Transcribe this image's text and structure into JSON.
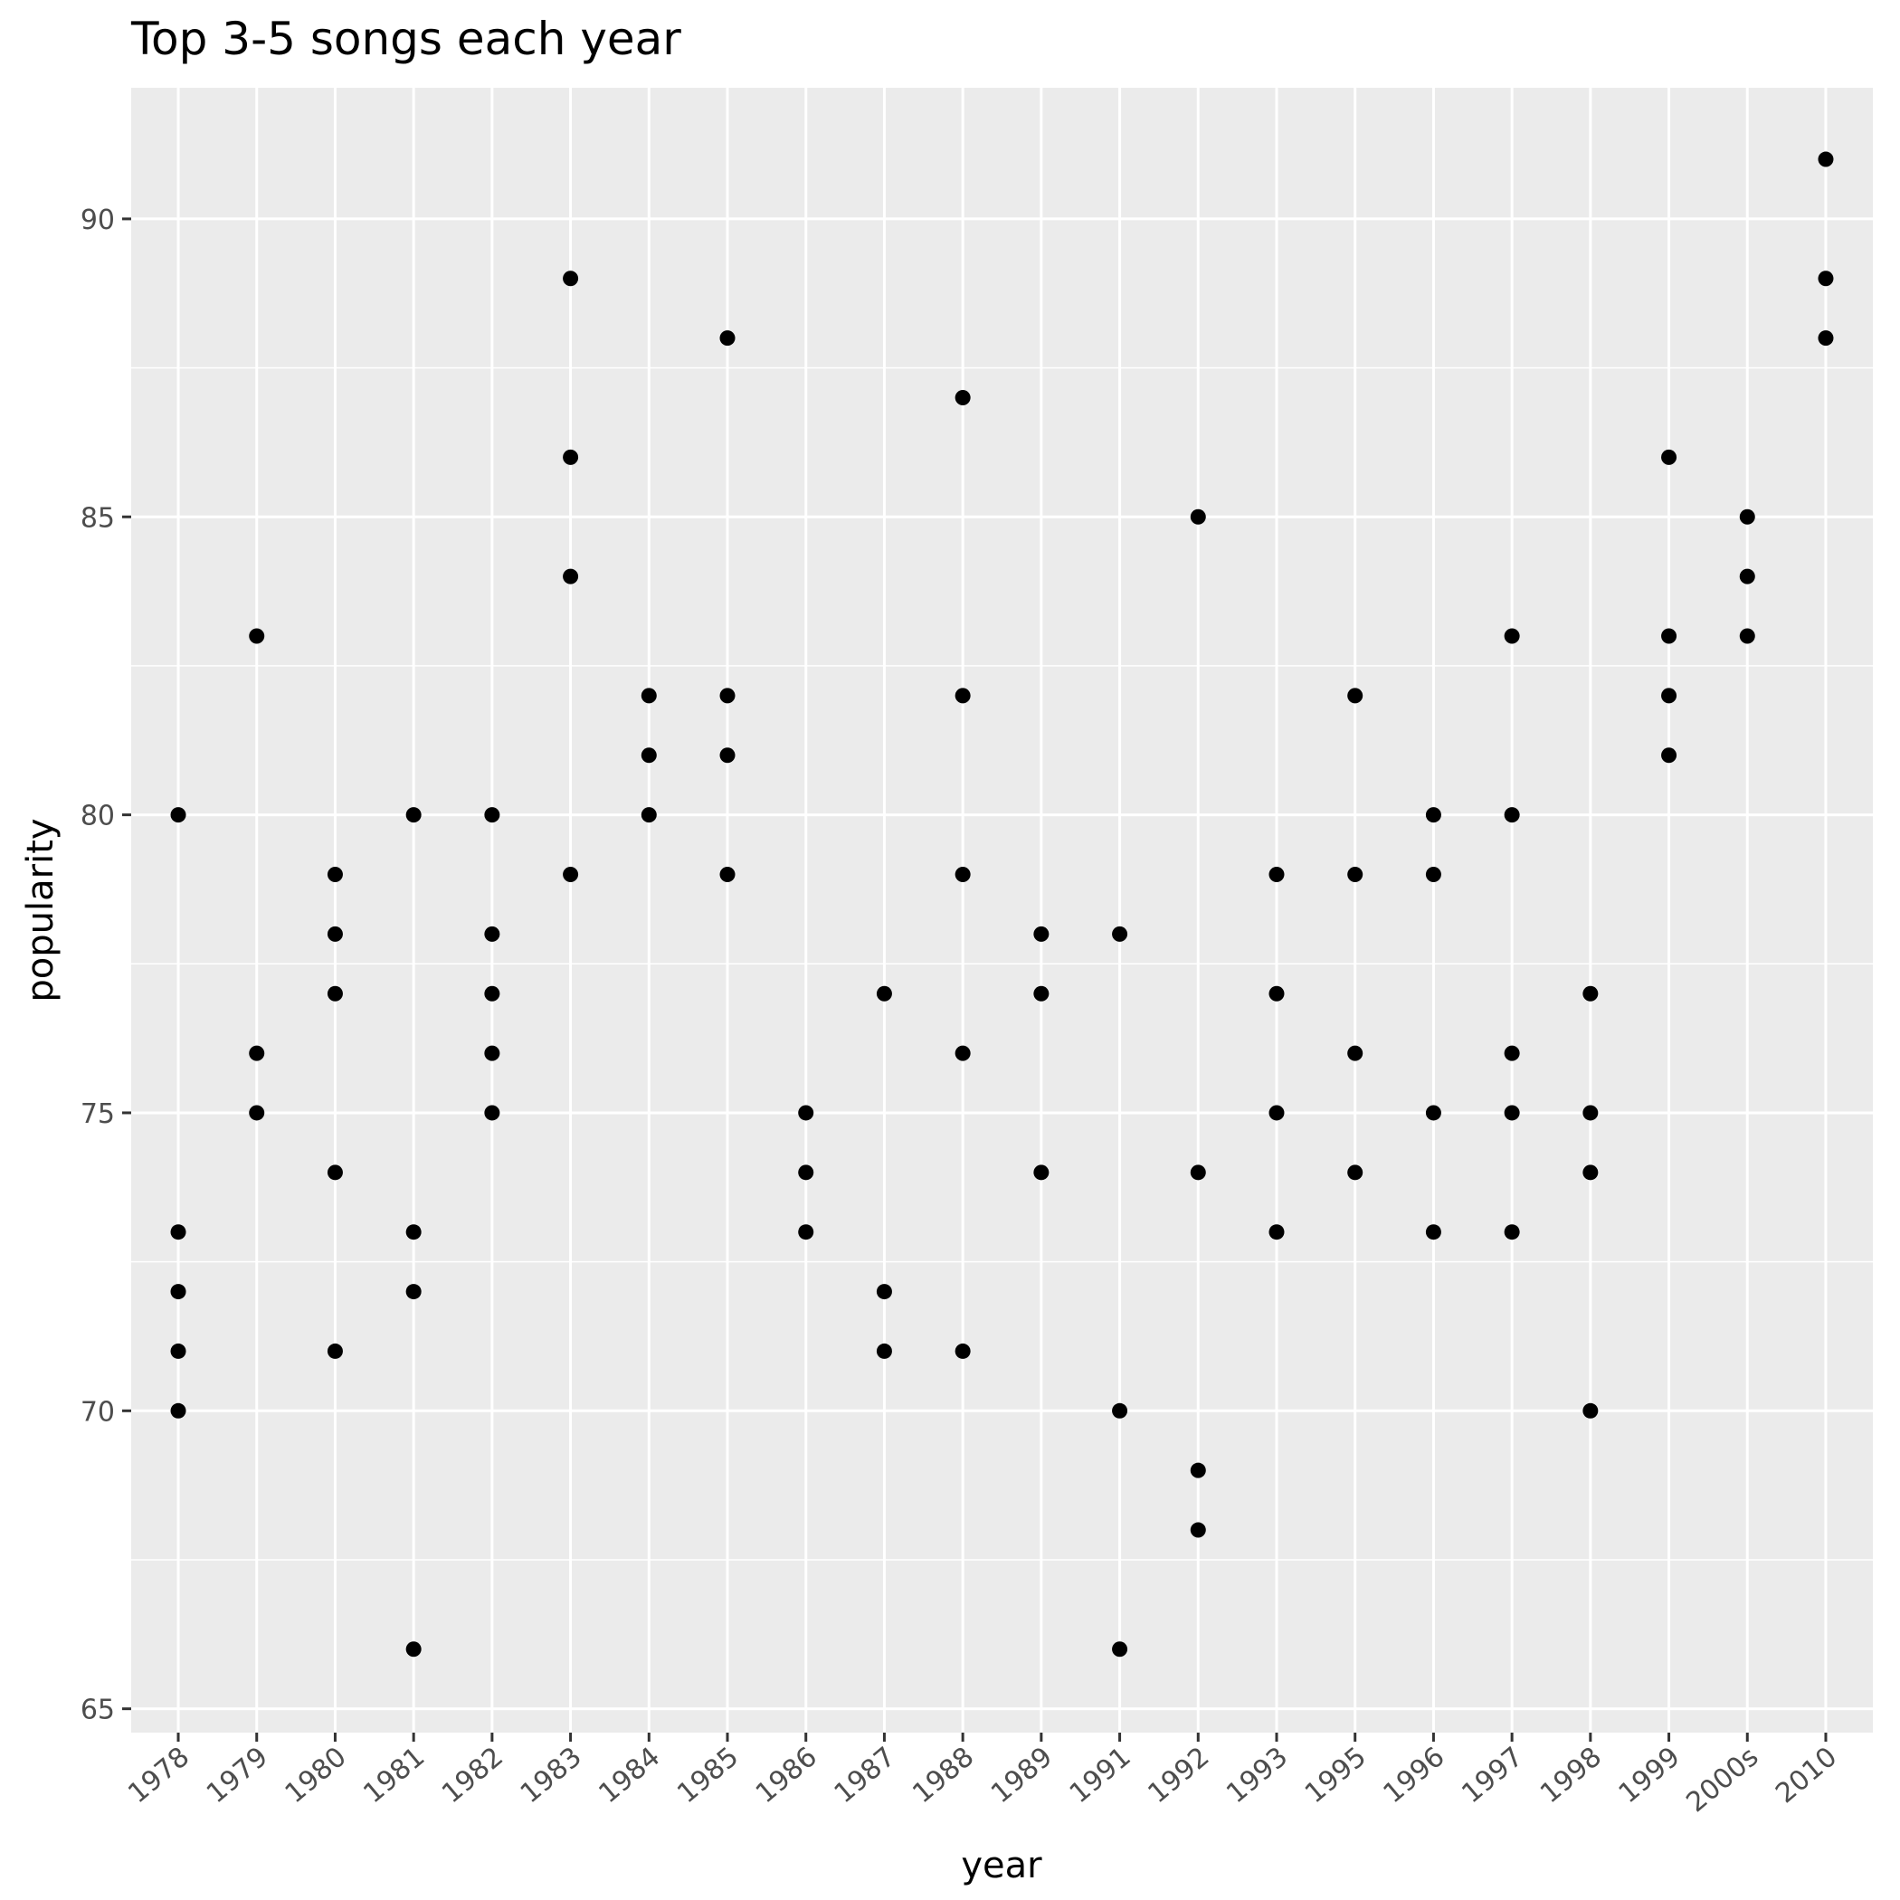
{
  "chart_data": {
    "type": "scatter",
    "title": "Top 3-5 songs each year",
    "xlabel": "year",
    "ylabel": "popularity",
    "categories": [
      "1978",
      "1979",
      "1980",
      "1981",
      "1982",
      "1983",
      "1984",
      "1985",
      "1986",
      "1987",
      "1988",
      "1989",
      "1991",
      "1992",
      "1993",
      "1995",
      "1996",
      "1997",
      "1998",
      "1999",
      "2000s",
      "2010"
    ],
    "ylim": [
      64.6,
      92.2
    ],
    "yticks": [
      65,
      70,
      75,
      80,
      85,
      90
    ],
    "grid": true,
    "legend": "none",
    "colors": {
      "panel": "#ebebeb",
      "grid": "#ffffff",
      "point": "#000000",
      "tick": "#333333",
      "tick_label": "#4d4d4d"
    },
    "points": [
      {
        "x": "1978",
        "y": 80
      },
      {
        "x": "1978",
        "y": 73
      },
      {
        "x": "1978",
        "y": 72
      },
      {
        "x": "1978",
        "y": 71
      },
      {
        "x": "1978",
        "y": 70
      },
      {
        "x": "1979",
        "y": 83
      },
      {
        "x": "1979",
        "y": 76
      },
      {
        "x": "1979",
        "y": 75
      },
      {
        "x": "1980",
        "y": 79
      },
      {
        "x": "1980",
        "y": 78
      },
      {
        "x": "1980",
        "y": 77
      },
      {
        "x": "1980",
        "y": 74
      },
      {
        "x": "1980",
        "y": 71
      },
      {
        "x": "1981",
        "y": 80
      },
      {
        "x": "1981",
        "y": 73
      },
      {
        "x": "1981",
        "y": 72
      },
      {
        "x": "1981",
        "y": 66
      },
      {
        "x": "1982",
        "y": 80
      },
      {
        "x": "1982",
        "y": 78
      },
      {
        "x": "1982",
        "y": 77
      },
      {
        "x": "1982",
        "y": 76
      },
      {
        "x": "1982",
        "y": 75
      },
      {
        "x": "1983",
        "y": 89
      },
      {
        "x": "1983",
        "y": 86
      },
      {
        "x": "1983",
        "y": 84
      },
      {
        "x": "1983",
        "y": 79
      },
      {
        "x": "1984",
        "y": 82
      },
      {
        "x": "1984",
        "y": 81
      },
      {
        "x": "1984",
        "y": 80
      },
      {
        "x": "1985",
        "y": 88
      },
      {
        "x": "1985",
        "y": 82
      },
      {
        "x": "1985",
        "y": 81
      },
      {
        "x": "1985",
        "y": 79
      },
      {
        "x": "1986",
        "y": 75
      },
      {
        "x": "1986",
        "y": 74
      },
      {
        "x": "1986",
        "y": 73
      },
      {
        "x": "1987",
        "y": 77
      },
      {
        "x": "1987",
        "y": 72
      },
      {
        "x": "1987",
        "y": 71
      },
      {
        "x": "1988",
        "y": 87
      },
      {
        "x": "1988",
        "y": 82
      },
      {
        "x": "1988",
        "y": 79
      },
      {
        "x": "1988",
        "y": 76
      },
      {
        "x": "1988",
        "y": 71
      },
      {
        "x": "1989",
        "y": 78
      },
      {
        "x": "1989",
        "y": 77
      },
      {
        "x": "1989",
        "y": 74
      },
      {
        "x": "1991",
        "y": 78
      },
      {
        "x": "1991",
        "y": 70
      },
      {
        "x": "1991",
        "y": 66
      },
      {
        "x": "1992",
        "y": 85
      },
      {
        "x": "1992",
        "y": 74
      },
      {
        "x": "1992",
        "y": 69
      },
      {
        "x": "1992",
        "y": 68
      },
      {
        "x": "1993",
        "y": 79
      },
      {
        "x": "1993",
        "y": 77
      },
      {
        "x": "1993",
        "y": 75
      },
      {
        "x": "1993",
        "y": 73
      },
      {
        "x": "1995",
        "y": 82
      },
      {
        "x": "1995",
        "y": 79
      },
      {
        "x": "1995",
        "y": 76
      },
      {
        "x": "1995",
        "y": 74
      },
      {
        "x": "1996",
        "y": 80
      },
      {
        "x": "1996",
        "y": 79
      },
      {
        "x": "1996",
        "y": 75
      },
      {
        "x": "1996",
        "y": 73
      },
      {
        "x": "1997",
        "y": 83
      },
      {
        "x": "1997",
        "y": 80
      },
      {
        "x": "1997",
        "y": 76
      },
      {
        "x": "1997",
        "y": 75
      },
      {
        "x": "1997",
        "y": 73
      },
      {
        "x": "1998",
        "y": 77
      },
      {
        "x": "1998",
        "y": 75
      },
      {
        "x": "1998",
        "y": 74
      },
      {
        "x": "1998",
        "y": 70
      },
      {
        "x": "1999",
        "y": 86
      },
      {
        "x": "1999",
        "y": 83
      },
      {
        "x": "1999",
        "y": 82
      },
      {
        "x": "1999",
        "y": 81
      },
      {
        "x": "2000s",
        "y": 85
      },
      {
        "x": "2000s",
        "y": 84
      },
      {
        "x": "2000s",
        "y": 83
      },
      {
        "x": "2010",
        "y": 91
      },
      {
        "x": "2010",
        "y": 89
      },
      {
        "x": "2010",
        "y": 88
      }
    ]
  }
}
